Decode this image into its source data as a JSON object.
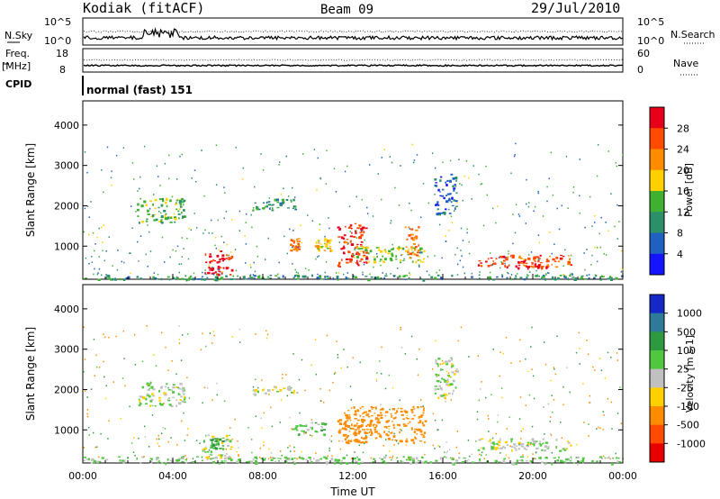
{
  "header": {
    "station": "Kodiak (fitACF)",
    "beam": "Beam 09",
    "date": "29/Jul/2010"
  },
  "stats_panel": {
    "left_label": "N.Sky",
    "right_label": "N.Search",
    "tick_high": "10^5",
    "tick_low": "10^0"
  },
  "freq_panel": {
    "left_label_1": "Freq.",
    "left_label_2": "[MHz]",
    "right_label": "Nave",
    "left_tick_high": "18",
    "left_tick_low": "8",
    "right_tick_high": "60",
    "right_tick_low": "0"
  },
  "cpid": {
    "label": "CPID",
    "mode_text": "normal (fast) 151"
  },
  "chart_data": [
    {
      "type": "heatmap",
      "ylabel": "Slant Range [km]",
      "ylim": [
        180,
        4600
      ],
      "yticks": [
        1000,
        2000,
        3000,
        4000
      ],
      "colorbar_label": "Power [dB]",
      "colorbar_ticks": [
        "28",
        "24",
        "20",
        "16",
        "12",
        "8",
        "4"
      ],
      "colorbar_colors": [
        "#e8001a",
        "#ff4a00",
        "#ff8c00",
        "#ffd000",
        "#40b030",
        "#2b8f6a",
        "#2060c0",
        "#1414ff"
      ],
      "colorscale_range": [
        0,
        30
      ],
      "echo_regions": [
        {
          "t_start": 5.3,
          "t_end": 6.6,
          "r_start": 300,
          "r_end": 900,
          "value": 28
        },
        {
          "t_start": 11.3,
          "t_end": 12.6,
          "r_start": 500,
          "r_end": 1600,
          "value": 26
        },
        {
          "t_start": 9.2,
          "t_end": 9.6,
          "r_start": 900,
          "r_end": 1200,
          "value": 22
        },
        {
          "t_start": 10.3,
          "t_end": 11.0,
          "r_start": 900,
          "r_end": 1200,
          "value": 18
        },
        {
          "t_start": 12.0,
          "t_end": 15.2,
          "r_start": 600,
          "r_end": 1000,
          "value": 14
        },
        {
          "t_start": 14.3,
          "t_end": 14.9,
          "r_start": 700,
          "r_end": 1500,
          "value": 22
        },
        {
          "t_start": 17.5,
          "t_end": 21.8,
          "r_start": 500,
          "r_end": 800,
          "value": 24
        },
        {
          "t_start": 19.2,
          "t_end": 20.6,
          "r_start": 450,
          "r_end": 650,
          "value": 28
        },
        {
          "t_start": 2.4,
          "t_end": 4.5,
          "r_start": 1600,
          "r_end": 2200,
          "value": 12
        },
        {
          "t_start": 7.5,
          "t_end": 9.5,
          "r_start": 1900,
          "r_end": 2200,
          "value": 10
        },
        {
          "t_start": 15.6,
          "t_end": 16.6,
          "r_start": 1800,
          "r_end": 2800,
          "value": 6
        },
        {
          "t_start": 0.0,
          "t_end": 24.0,
          "r_start": 180,
          "r_end": 300,
          "value": 10
        }
      ]
    },
    {
      "type": "heatmap",
      "ylabel": "Slant Range [km]",
      "xlabel": "Time UT",
      "ylim": [
        180,
        4600
      ],
      "yticks": [
        1000,
        2000,
        3000,
        4000
      ],
      "xticks": [
        "00:00",
        "04:00",
        "08:00",
        "12:00",
        "16:00",
        "20:00",
        "00:00"
      ],
      "xlim_hours": [
        0,
        24
      ],
      "colorbar_label": "Velocity [m s-1]",
      "colorbar_ticks": [
        "1000",
        "500",
        "100",
        "25",
        "-25",
        "-100",
        "-500",
        "-1000"
      ],
      "colorbar_colors": [
        "#1428c8",
        "#2e7a98",
        "#2e9a40",
        "#4fc840",
        "#c0c0c0",
        "#ffd000",
        "#ff8c00",
        "#ff4a00",
        "#e80000"
      ],
      "echo_regions": [
        {
          "t_start": 5.3,
          "t_end": 6.6,
          "r_start": 300,
          "r_end": 900,
          "value": 0
        },
        {
          "t_start": 5.6,
          "t_end": 6.2,
          "r_start": 550,
          "r_end": 800,
          "value": 150
        },
        {
          "t_start": 11.3,
          "t_end": 12.6,
          "r_start": 700,
          "r_end": 1500,
          "value": -200
        },
        {
          "t_start": 12.0,
          "t_end": 15.2,
          "r_start": 700,
          "r_end": 1600,
          "value": -300
        },
        {
          "t_start": 9.2,
          "t_end": 11.0,
          "r_start": 900,
          "r_end": 1200,
          "value": 60
        },
        {
          "t_start": 7.5,
          "t_end": 9.5,
          "r_start": 1900,
          "r_end": 2100,
          "value": 0
        },
        {
          "t_start": 17.5,
          "t_end": 21.8,
          "r_start": 500,
          "r_end": 800,
          "value": 0
        },
        {
          "t_start": 2.4,
          "t_end": 4.5,
          "r_start": 1600,
          "r_end": 2200,
          "value": 20
        },
        {
          "t_start": 15.6,
          "t_end": 16.6,
          "r_start": 1800,
          "r_end": 2800,
          "value": 0
        },
        {
          "t_start": 0.0,
          "t_end": 24.0,
          "r_start": 180,
          "r_end": 350,
          "value": 40
        }
      ]
    }
  ]
}
